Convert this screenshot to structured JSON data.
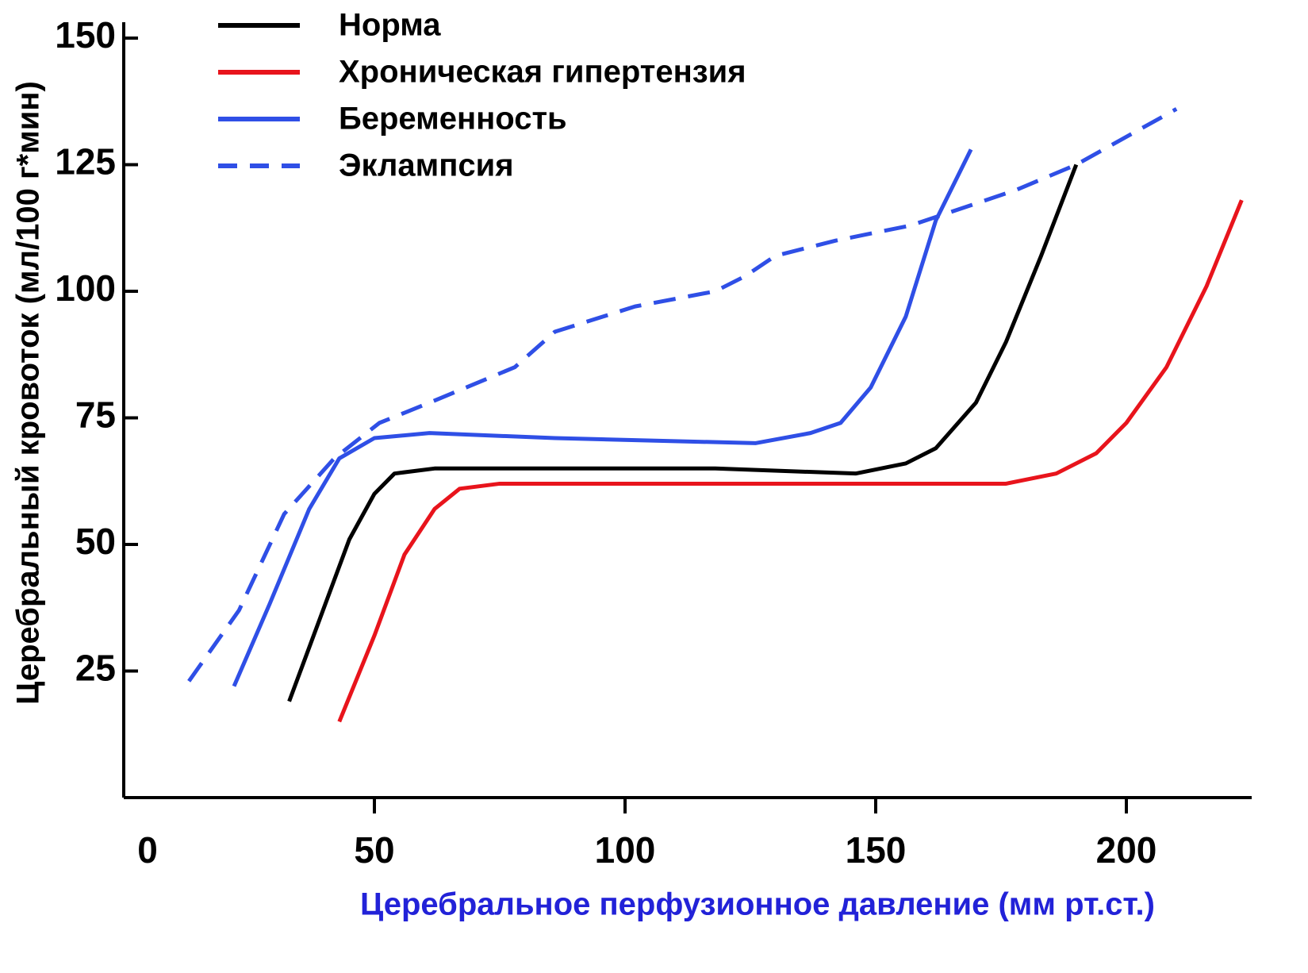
{
  "chart_data": {
    "type": "line",
    "xlabel": "Церебральное перфузионное давление (мм рт.ст.)",
    "ylabel": "Церебральный кровоток (мл/100 г*мин)",
    "xlim": [
      0,
      225
    ],
    "xticks": [
      0,
      50,
      100,
      150,
      200
    ],
    "ylim": [
      0,
      150
    ],
    "yticks": [
      25,
      50,
      75,
      100,
      125,
      150
    ],
    "legend": "upper-left",
    "grid": false,
    "series": [
      {
        "name": "Норма",
        "color": "#000000",
        "linestyle": "solid",
        "x": [
          33,
          39,
          45,
          50,
          54,
          62,
          86,
          118,
          146,
          156,
          162,
          170,
          176,
          183,
          190
        ],
        "values": [
          19,
          35,
          51,
          60,
          64,
          65,
          65,
          65,
          64,
          66,
          69,
          78,
          90,
          107,
          125
        ]
      },
      {
        "name": "Хроническая гипертензия",
        "color": "#e8141c",
        "linestyle": "solid",
        "x": [
          43,
          50,
          56,
          62,
          67,
          75,
          118,
          165,
          176,
          186,
          194,
          200,
          208,
          216,
          223
        ],
        "values": [
          15,
          32,
          48,
          57,
          61,
          62,
          62,
          62,
          62,
          64,
          68,
          74,
          85,
          101,
          118
        ]
      },
      {
        "name": "Беременность",
        "color": "#2f4fe6",
        "linestyle": "solid",
        "x": [
          22,
          29,
          37,
          43,
          50,
          61,
          86,
          126,
          137,
          143,
          149,
          156,
          162,
          169
        ],
        "values": [
          22,
          38,
          57,
          67,
          71,
          72,
          71,
          70,
          72,
          74,
          81,
          95,
          114,
          128
        ]
      },
      {
        "name": "Эклампсия",
        "color": "#2f4fe6",
        "linestyle": "dashed",
        "x": [
          13,
          23,
          32,
          42,
          51,
          61,
          78,
          86,
          102,
          118,
          124,
          130,
          142,
          157,
          178,
          190,
          210
        ],
        "values": [
          23,
          37,
          56,
          67,
          74,
          78,
          85,
          92,
          97,
          100,
          103,
          107,
          110,
          113,
          120,
          125,
          136
        ]
      }
    ]
  }
}
